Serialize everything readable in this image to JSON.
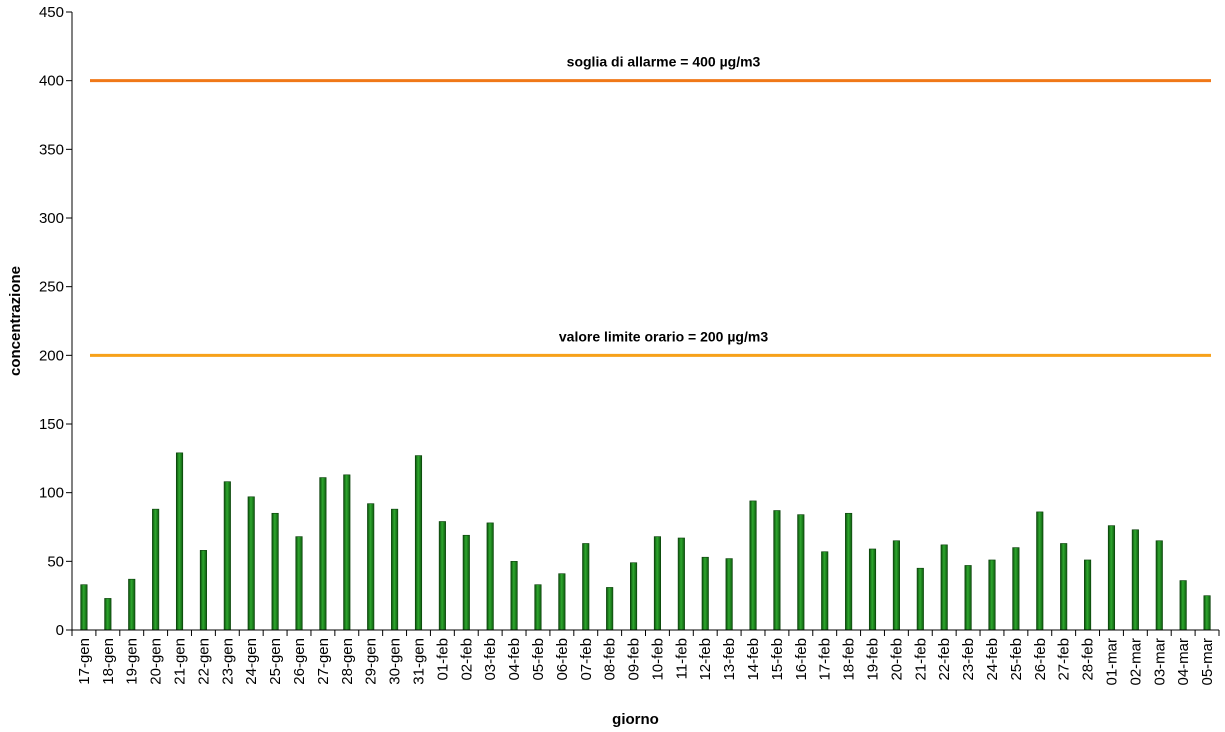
{
  "chart_data": {
    "type": "bar",
    "title": "",
    "xlabel": "giorno",
    "ylabel": "concentrazione",
    "ylim": [
      0,
      450
    ],
    "yticks": [
      0,
      50,
      100,
      150,
      200,
      250,
      300,
      350,
      400,
      450
    ],
    "grid": false,
    "legend": "none",
    "categories": [
      "17-gen",
      "18-gen",
      "19-gen",
      "20-gen",
      "21-gen",
      "22-gen",
      "23-gen",
      "24-gen",
      "25-gen",
      "26-gen",
      "27-gen",
      "28-gen",
      "29-gen",
      "30-gen",
      "31-gen",
      "01-feb",
      "02-feb",
      "03-feb",
      "04-feb",
      "05-feb",
      "06-feb",
      "07-feb",
      "08-feb",
      "09-feb",
      "10-feb",
      "11-feb",
      "12-feb",
      "13-feb",
      "14-feb",
      "15-feb",
      "16-feb",
      "17-feb",
      "18-feb",
      "19-feb",
      "20-feb",
      "21-feb",
      "22-feb",
      "23-feb",
      "24-feb",
      "25-feb",
      "26-feb",
      "27-feb",
      "28-feb",
      "01-mar",
      "02-mar",
      "03-mar",
      "04-mar",
      "05-mar"
    ],
    "series": [
      {
        "color": "#1a7f1a",
        "values": [
          33,
          23,
          37,
          88,
          129,
          58,
          108,
          97,
          85,
          68,
          111,
          113,
          92,
          88,
          127,
          79,
          69,
          78,
          50,
          33,
          41,
          63,
          31,
          49,
          68,
          67,
          53,
          52,
          94,
          87,
          84,
          57,
          85,
          59,
          65,
          45,
          62,
          47,
          51,
          60,
          86,
          63,
          51,
          76,
          73,
          65,
          36,
          25
        ]
      }
    ],
    "reference_lines": [
      {
        "value": 400,
        "label": "soglia di allarme = 400 µg/m3",
        "color": "#f07818"
      },
      {
        "value": 200,
        "label": "valore limite orario = 200 µg/m3",
        "color": "#f7a11a"
      }
    ]
  }
}
